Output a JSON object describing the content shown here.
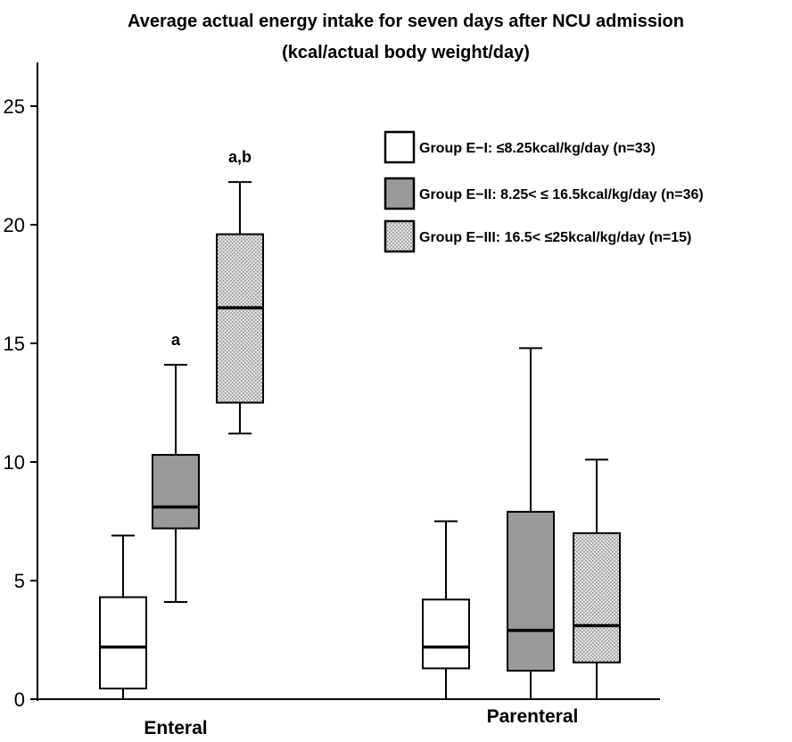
{
  "chart_data": {
    "type": "boxplot",
    "title": "Average actual energy intake for seven days after NCU admission",
    "subtitle": "(kcal/actual body weight/day)",
    "xlabel": "",
    "ylabel": "",
    "ylim": [
      0,
      27
    ],
    "yticks": [
      0,
      5,
      10,
      15,
      20,
      25
    ],
    "categories": [
      "Enteral",
      "Parenteral"
    ],
    "legend_position": "top-right",
    "series": [
      {
        "name": "Group E−I: ≤8.25kcal/kg/day (n=33)",
        "fill": "#ffffff",
        "pattern": "none",
        "boxes": [
          {
            "category": "Enteral",
            "min": 0,
            "q1": 0.45,
            "median": 2.2,
            "q3": 4.3,
            "max": 6.9
          },
          {
            "category": "Parenteral",
            "min": 0,
            "q1": 1.3,
            "median": 2.2,
            "q3": 4.2,
            "max": 7.5
          }
        ]
      },
      {
        "name": "Group E−II: 8.25< ≤ 16.5kcal/kg/day  (n=36)",
        "fill": "#9a9a9a",
        "pattern": "none",
        "boxes": [
          {
            "category": "Enteral",
            "min": 4.1,
            "q1": 7.2,
            "median": 8.1,
            "q3": 10.3,
            "max": 14.1
          },
          {
            "category": "Parenteral",
            "min": 0,
            "q1": 1.2,
            "median": 2.9,
            "q3": 7.9,
            "max": 14.8
          }
        ]
      },
      {
        "name": "Group E−III: 16.5< ≤25kcal/kg/day  (n=15)",
        "fill": "#d6d6d6",
        "pattern": "dots",
        "boxes": [
          {
            "category": "Enteral",
            "min": 11.2,
            "q1": 12.5,
            "median": 16.5,
            "q3": 19.6,
            "max": 21.8
          },
          {
            "category": "Parenteral",
            "min": 0,
            "q1": 1.55,
            "median": 3.1,
            "q3": 7.0,
            "max": 10.1
          }
        ]
      }
    ],
    "annotations": [
      {
        "text": "a",
        "series": 1,
        "category": "Enteral"
      },
      {
        "text": "a,b",
        "series": 2,
        "category": "Enteral"
      }
    ]
  }
}
